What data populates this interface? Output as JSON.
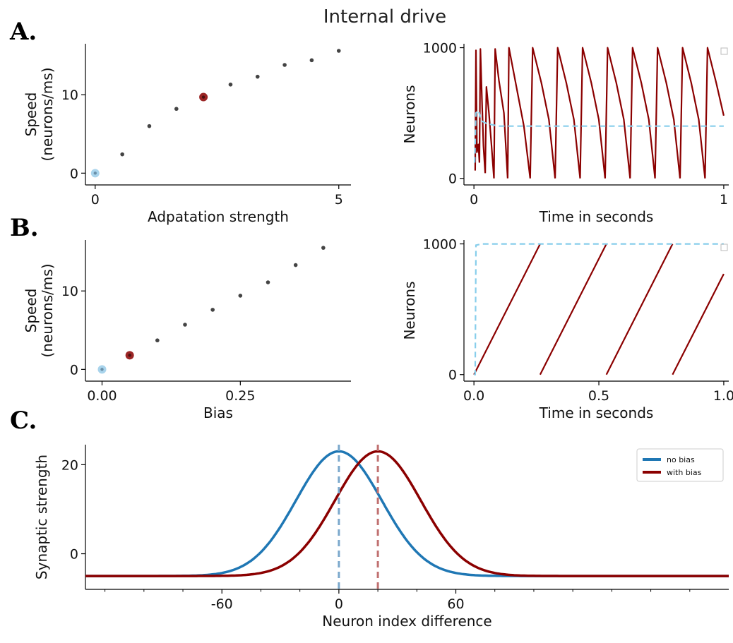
{
  "figure": {
    "title": "Internal drive",
    "panel_labels": [
      "A.",
      "B.",
      "C."
    ]
  },
  "chart_data": [
    {
      "id": "A-left",
      "type": "scatter",
      "xlabel": "Adpatation strength",
      "ylabel_lines": [
        "Speed",
        "(neurons/ms)"
      ],
      "xlim": [
        -0.2,
        5.25
      ],
      "ylim": [
        -1.5,
        16.5
      ],
      "xticks": [
        0,
        5
      ],
      "xtick_labels": [
        "0",
        "5"
      ],
      "yticks": [
        0,
        10
      ],
      "ytick_labels": [
        "0",
        "10"
      ],
      "x": [
        0,
        0.556,
        1.111,
        1.667,
        2.222,
        2.778,
        3.333,
        3.889,
        4.444,
        5.0
      ],
      "y": [
        0,
        2.4,
        6.0,
        8.2,
        9.7,
        11.3,
        12.3,
        13.8,
        14.4,
        15.6
      ],
      "highlight_blue_index": 0,
      "highlight_red_index": 4,
      "colors": {
        "point": "#444444",
        "blue": "#a9d4ec",
        "red": "#9b2525"
      }
    },
    {
      "id": "A-right",
      "type": "line",
      "xlabel": "Time in seconds",
      "ylabel": "Neurons",
      "xlim": [
        -0.04,
        1.02
      ],
      "ylim": [
        -50,
        1030
      ],
      "xticks": [
        0,
        1
      ],
      "xtick_labels": [
        "0",
        "1"
      ],
      "yticks": [
        0,
        1000
      ],
      "ytick_labels": [
        "0",
        "1000"
      ],
      "series": [
        {
          "style": "sawtooth",
          "color": "#8b0000",
          "segments": [
            [
              [
                0.005,
                60
              ],
              [
                0.008,
                980
              ],
              [
                0.012,
                200
              ],
              [
                0.018,
                260
              ],
              [
                0.022,
                120
              ]
            ],
            [
              [
                0.022,
                120
              ],
              [
                0.026,
                990
              ],
              [
                0.032,
                600
              ],
              [
                0.038,
                250
              ],
              [
                0.045,
                40
              ]
            ],
            [
              [
                0.045,
                40
              ],
              [
                0.05,
                700
              ],
              [
                0.06,
                500
              ],
              [
                0.07,
                260
              ],
              [
                0.08,
                0
              ]
            ],
            [
              [
                0.08,
                0
              ],
              [
                0.085,
                990
              ],
              [
                0.1,
                750
              ],
              [
                0.12,
                500
              ],
              [
                0.135,
                0
              ]
            ],
            [
              [
                0.135,
                0
              ],
              [
                0.14,
                1000
              ],
              [
                0.17,
                700
              ],
              [
                0.2,
                400
              ],
              [
                0.225,
                0
              ]
            ],
            [
              [
                0.225,
                0
              ],
              [
                0.235,
                1000
              ],
              [
                0.27,
                730
              ],
              [
                0.3,
                450
              ],
              [
                0.325,
                0
              ]
            ],
            [
              [
                0.325,
                0
              ],
              [
                0.335,
                1000
              ],
              [
                0.37,
                730
              ],
              [
                0.4,
                450
              ],
              [
                0.425,
                0
              ]
            ],
            [
              [
                0.425,
                0
              ],
              [
                0.435,
                1000
              ],
              [
                0.47,
                730
              ],
              [
                0.5,
                450
              ],
              [
                0.525,
                0
              ]
            ],
            [
              [
                0.525,
                0
              ],
              [
                0.535,
                1000
              ],
              [
                0.57,
                730
              ],
              [
                0.6,
                450
              ],
              [
                0.625,
                0
              ]
            ],
            [
              [
                0.625,
                0
              ],
              [
                0.635,
                1000
              ],
              [
                0.67,
                730
              ],
              [
                0.7,
                450
              ],
              [
                0.725,
                0
              ]
            ],
            [
              [
                0.725,
                0
              ],
              [
                0.735,
                1000
              ],
              [
                0.77,
                730
              ],
              [
                0.8,
                450
              ],
              [
                0.825,
                0
              ]
            ],
            [
              [
                0.825,
                0
              ],
              [
                0.835,
                1000
              ],
              [
                0.87,
                730
              ],
              [
                0.9,
                450
              ],
              [
                0.925,
                0
              ]
            ],
            [
              [
                0.925,
                0
              ],
              [
                0.935,
                1000
              ],
              [
                0.97,
                730
              ],
              [
                1.0,
                480
              ]
            ]
          ]
        },
        {
          "style": "dashed",
          "color": "#87ceeb",
          "points": [
            [
              0.003,
              120
            ],
            [
              0.008,
              500
            ],
            [
              0.018,
              520
            ],
            [
              0.03,
              440
            ],
            [
              0.05,
              420
            ],
            [
              0.1,
              400
            ],
            [
              1.0,
              400
            ]
          ]
        }
      ]
    },
    {
      "id": "B-left",
      "type": "scatter",
      "xlabel": "Bias",
      "ylabel_lines": [
        "Speed",
        "(neurons/ms)"
      ],
      "xlim": [
        -0.03,
        0.45
      ],
      "ylim": [
        -1.5,
        16.5
      ],
      "xticks": [
        0,
        0.25
      ],
      "xtick_labels": [
        "0.00",
        "0.25"
      ],
      "yticks": [
        0,
        10
      ],
      "ytick_labels": [
        "0",
        "10"
      ],
      "x": [
        0,
        0.05,
        0.1,
        0.15,
        0.2,
        0.25,
        0.3,
        0.35,
        0.4
      ],
      "y": [
        0,
        1.8,
        3.7,
        5.7,
        7.6,
        9.4,
        11.1,
        13.3,
        15.5
      ],
      "highlight_blue_index": 0,
      "highlight_red_index": 1,
      "colors": {
        "point": "#444444",
        "blue": "#a9d4ec",
        "red": "#9b2525"
      }
    },
    {
      "id": "B-right",
      "type": "line",
      "xlabel": "Time in seconds",
      "ylabel": "Neurons",
      "xlim": [
        -0.04,
        1.02
      ],
      "ylim": [
        -50,
        1030
      ],
      "xticks": [
        0,
        0.5,
        1.0
      ],
      "xtick_labels": [
        "0.0",
        "0.5",
        "1.0"
      ],
      "yticks": [
        0,
        1000
      ],
      "ytick_labels": [
        "0",
        "1000"
      ],
      "series": [
        {
          "style": "sawtooth",
          "color": "#8b0000",
          "segments": [
            [
              [
                0.0,
                0
              ],
              [
                0.265,
                1000
              ]
            ],
            [
              [
                0.265,
                0
              ],
              [
                0.53,
                1000
              ]
            ],
            [
              [
                0.53,
                0
              ],
              [
                0.795,
                1000
              ]
            ],
            [
              [
                0.795,
                0
              ],
              [
                1.0,
                770
              ]
            ]
          ]
        },
        {
          "style": "dashed",
          "color": "#87ceeb",
          "points": [
            [
              0.0,
              0
            ],
            [
              0.005,
              0
            ],
            [
              0.008,
              990
            ],
            [
              0.03,
              1000
            ],
            [
              1.0,
              1000
            ]
          ]
        }
      ]
    },
    {
      "id": "C",
      "type": "line",
      "xlabel": "Neuron index difference",
      "ylabel": "Synaptic strength",
      "xlim": [
        -130,
        200
      ],
      "ylim": [
        -8,
        24.5
      ],
      "xticks": [
        -60,
        0,
        60
      ],
      "xtick_labels": [
        "-60",
        "0",
        "60"
      ],
      "yticks": [
        0,
        20
      ],
      "ytick_labels": [
        "0",
        "20"
      ],
      "gaussian": {
        "amplitude": 28,
        "baseline": -5,
        "sigma": 22
      },
      "series": [
        {
          "name": "no bias",
          "center": 0,
          "color": "#1f77b4"
        },
        {
          "name": "with bias",
          "center": 20,
          "color": "#8b0000"
        }
      ],
      "vlines": [
        {
          "x": 0,
          "color": "#7aa8cc"
        },
        {
          "x": 20,
          "color": "#c07070"
        }
      ],
      "legend": "top-right"
    }
  ]
}
